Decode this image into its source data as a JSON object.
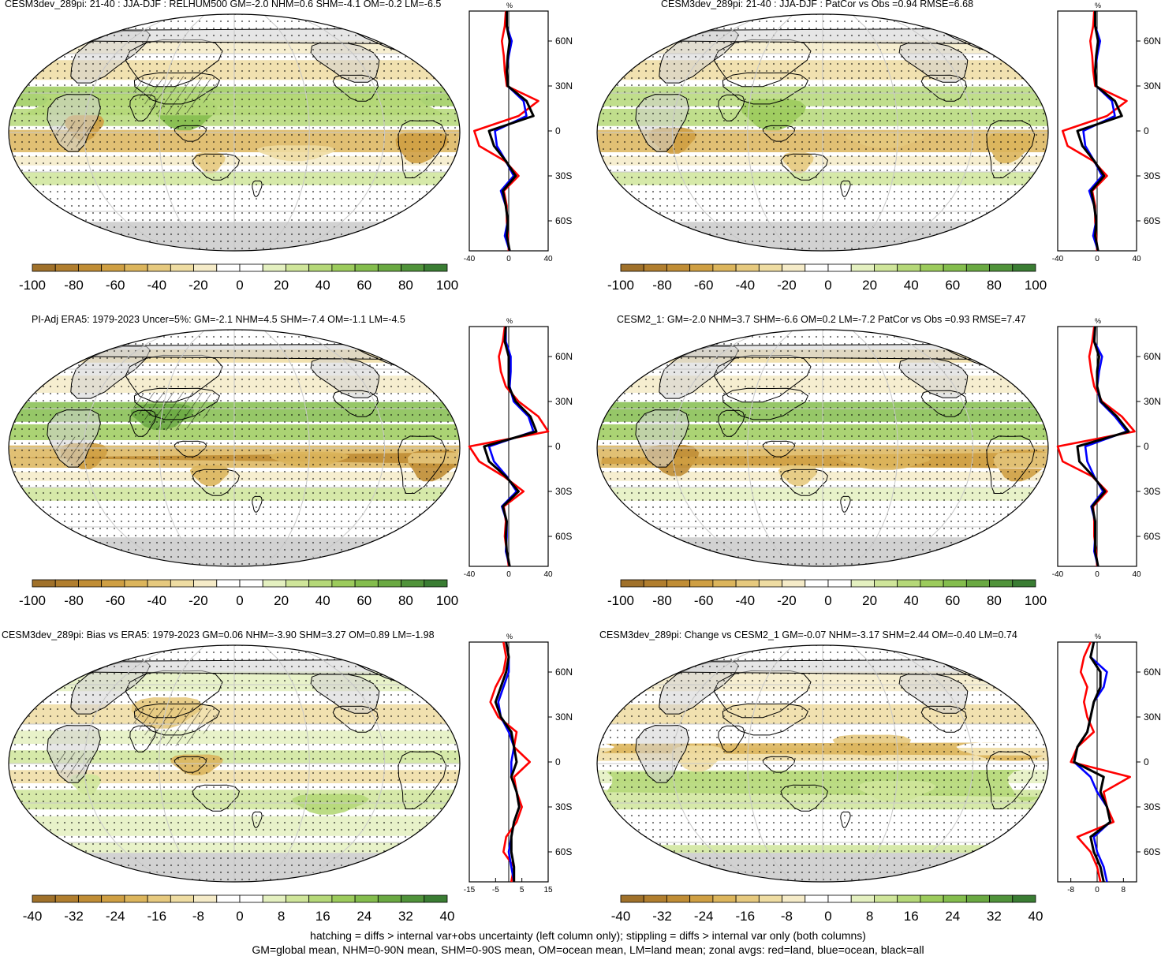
{
  "colors": {
    "scale": [
      "#a0712a",
      "#b17e2e",
      "#c08d35",
      "#cf9f43",
      "#dcb55c",
      "#e6c97e",
      "#eedca2",
      "#f5ebc8",
      "#ffffff",
      "#ffffff",
      "#e4f0c0",
      "#cfe59a",
      "#b5d878",
      "#9ccb5c",
      "#84bd4d",
      "#6aa942",
      "#50933a",
      "#3a7d33"
    ],
    "land": "#d2d2d2",
    "land_curve": "#ff0000",
    "ocean_curve": "#0000ff",
    "all_curve": "#000000"
  },
  "panels": [
    {
      "title": "CESM3dev_289pi: 21-40 : JJA-DJF : RELHUM500 GM=-2.0 NHM=0.6 SHM=-4.1 OM=-0.2 LM=-6.5",
      "hatching": true,
      "colorbar_labels": [
        "-100",
        "-80",
        "-60",
        "-40",
        "-20",
        "0",
        "20",
        "40",
        "60",
        "80",
        "100"
      ],
      "zonal_xticks": [
        "-40",
        "0",
        "40"
      ],
      "zonal_xlim": [
        -40,
        40
      ],
      "zonal_unit": "%",
      "lat_labels": [
        "60N",
        "30N",
        "0",
        "30S",
        "60S"
      ]
    },
    {
      "title": "CESM3dev_289pi: 21-40 : JJA-DJF : PatCor vs Obs =0.94 RMSE=6.68",
      "hatching": false,
      "colorbar_labels": [
        "-100",
        "-80",
        "-60",
        "-40",
        "-20",
        "0",
        "20",
        "40",
        "60",
        "80",
        "100"
      ],
      "zonal_xticks": [
        "-40",
        "0",
        "40"
      ],
      "zonal_xlim": [
        -40,
        40
      ],
      "zonal_unit": "%",
      "lat_labels": [
        "60N",
        "30N",
        "0",
        "30S",
        "60S"
      ]
    },
    {
      "title": "PI-Adj ERA5: 1979-2023 Uncer=5%: GM=-2.1 NHM=4.5 SHM=-7.4 OM=-1.1 LM=-4.5",
      "hatching": true,
      "colorbar_labels": [
        "-100",
        "-80",
        "-60",
        "-40",
        "-20",
        "0",
        "20",
        "40",
        "60",
        "80",
        "100"
      ],
      "zonal_xticks": [
        "-40",
        "0",
        "40"
      ],
      "zonal_xlim": [
        -40,
        40
      ],
      "zonal_unit": "%",
      "lat_labels": [
        "60N",
        "30N",
        "0",
        "30S",
        "60S"
      ]
    },
    {
      "title": "CESM2_1: GM=-2.0 NHM=3.7 SHM=-6.6 OM=0.2 LM=-7.2 PatCor vs Obs =0.93 RMSE=7.47",
      "hatching": false,
      "colorbar_labels": [
        "-100",
        "-80",
        "-60",
        "-40",
        "-20",
        "0",
        "20",
        "40",
        "60",
        "80",
        "100"
      ],
      "zonal_xticks": [
        "-40",
        "0",
        "40"
      ],
      "zonal_xlim": [
        -40,
        40
      ],
      "zonal_unit": "%",
      "lat_labels": [
        "60N",
        "30N",
        "0",
        "30S",
        "60S"
      ]
    },
    {
      "title": "CESM3dev_289pi: Bias vs ERA5: 1979-2023 GM=0.06 NHM=-3.90 SHM=3.27 OM=0.89 LM=-1.98",
      "hatching": true,
      "colorbar_labels": [
        "-40",
        "-32",
        "-24",
        "-16",
        "-8",
        "0",
        "8",
        "16",
        "24",
        "32",
        "40"
      ],
      "zonal_xticks": [
        "-15",
        "-5",
        "5",
        "15"
      ],
      "zonal_xlim": [
        -15,
        15
      ],
      "zonal_unit": "%",
      "lat_labels": [
        "60N",
        "30N",
        "0",
        "30S",
        "60S"
      ]
    },
    {
      "title": "CESM3dev_289pi: Change vs CESM2_1 GM=-0.07 NHM=-3.17 SHM=2.44 OM=-0.40 LM=0.74",
      "hatching": false,
      "colorbar_labels": [
        "-40",
        "-32",
        "-24",
        "-16",
        "-8",
        "0",
        "8",
        "16",
        "24",
        "32",
        "40"
      ],
      "zonal_xticks": [
        "-8",
        "0",
        "8"
      ],
      "zonal_xlim": [
        -12,
        12
      ],
      "zonal_unit": "%",
      "lat_labels": [
        "60N",
        "30N",
        "0",
        "30S",
        "60S"
      ]
    }
  ],
  "chart_data": [
    {
      "type": "line",
      "title": "CESM3dev_289pi: 21-40 : JJA-DJF : RELHUM500 GM=-2.0 NHM=0.6 SHM=-4.1 OM=-0.2 LM=-6.5",
      "xlabel": "%",
      "ylim": [
        -80,
        80
      ],
      "lat": [
        80,
        70,
        60,
        50,
        40,
        30,
        20,
        10,
        0,
        -10,
        -20,
        -30,
        -40,
        -50,
        -60,
        -70,
        -80
      ],
      "series": [
        {
          "name": "land",
          "values": [
            -3,
            -4,
            -7,
            -5,
            -4,
            -2,
            30,
            10,
            -35,
            -30,
            -4,
            10,
            -5,
            -2,
            -2,
            -1,
            0
          ]
        },
        {
          "name": "ocean",
          "values": [
            -2,
            -2,
            3,
            0,
            -2,
            -1,
            15,
            18,
            -14,
            -12,
            -3,
            5,
            -8,
            -3,
            -1,
            -4,
            1
          ]
        },
        {
          "name": "all",
          "values": [
            -2,
            -2,
            1,
            -1,
            -2,
            -1,
            18,
            25,
            -20,
            -15,
            -3,
            7,
            -6,
            -3,
            -1,
            -2,
            1
          ]
        }
      ]
    },
    {
      "type": "line",
      "title": "CESM3dev_289pi: 21-40 : JJA-DJF : PatCor vs Obs =0.94 RMSE=6.68",
      "xlabel": "%",
      "ylim": [
        -80,
        80
      ],
      "lat": [
        80,
        70,
        60,
        50,
        40,
        30,
        20,
        10,
        0,
        -10,
        -20,
        -30,
        -40,
        -50,
        -60,
        -70,
        -80
      ],
      "series": [
        {
          "name": "land",
          "values": [
            -3,
            -4,
            -7,
            -5,
            -4,
            -2,
            30,
            10,
            -35,
            -30,
            -4,
            10,
            -5,
            -2,
            -2,
            -1,
            0
          ]
        },
        {
          "name": "ocean",
          "values": [
            -2,
            -2,
            3,
            0,
            -2,
            -1,
            15,
            18,
            -14,
            -12,
            -3,
            5,
            -8,
            -3,
            -1,
            -4,
            1
          ]
        },
        {
          "name": "all",
          "values": [
            -2,
            -2,
            1,
            -1,
            -2,
            -1,
            18,
            25,
            -20,
            -15,
            -3,
            7,
            -6,
            -3,
            -1,
            -2,
            1
          ]
        }
      ]
    },
    {
      "type": "line",
      "title": "PI-Adj ERA5: 1979-2023 Uncer=5%: GM=-2.1 NHM=4.5 SHM=-7.4 OM=-1.1 LM=-4.5",
      "xlabel": "%",
      "ylim": [
        -80,
        80
      ],
      "lat": [
        80,
        70,
        60,
        50,
        40,
        30,
        20,
        10,
        0,
        -10,
        -20,
        -30,
        -40,
        -50,
        -60,
        -70,
        -80
      ],
      "series": [
        {
          "name": "land",
          "values": [
            -4,
            -6,
            -10,
            -8,
            -3,
            10,
            30,
            40,
            -40,
            -30,
            -5,
            15,
            -5,
            -3,
            -4,
            -2,
            0
          ]
        },
        {
          "name": "ocean",
          "values": [
            -3,
            -3,
            2,
            2,
            1,
            5,
            20,
            25,
            -20,
            -15,
            -2,
            8,
            -7,
            -2,
            -2,
            -3,
            1
          ]
        },
        {
          "name": "all",
          "values": [
            -3,
            -4,
            0,
            0,
            0,
            7,
            22,
            28,
            -25,
            -20,
            -3,
            10,
            -6,
            -2,
            -3,
            -2,
            1
          ]
        }
      ]
    },
    {
      "type": "line",
      "title": "CESM2_1: GM=-2.0 NHM=3.7 SHM=-6.6 OM=0.2 LM=-7.2 PatCor vs Obs =0.93 RMSE=7.47",
      "xlabel": "%",
      "ylim": [
        -80,
        80
      ],
      "lat": [
        80,
        70,
        60,
        50,
        40,
        30,
        20,
        10,
        0,
        -10,
        -20,
        -30,
        -40,
        -50,
        -60,
        -70,
        -80
      ],
      "series": [
        {
          "name": "land",
          "values": [
            -3,
            -5,
            -8,
            -6,
            -3,
            5,
            25,
            38,
            -40,
            -35,
            -5,
            10,
            -4,
            -3,
            -3,
            -1,
            0
          ]
        },
        {
          "name": "ocean",
          "values": [
            -2,
            -3,
            5,
            2,
            0,
            3,
            18,
            30,
            -12,
            -10,
            -3,
            6,
            -6,
            -2,
            -2,
            -3,
            1
          ]
        },
        {
          "name": "all",
          "values": [
            -2,
            -3,
            2,
            0,
            0,
            4,
            20,
            32,
            -20,
            -18,
            -4,
            8,
            -5,
            -2,
            -2,
            -2,
            1
          ]
        }
      ]
    },
    {
      "type": "line",
      "title": "CESM3dev_289pi: Bias vs ERA5: 1979-2023 GM=0.06 NHM=-3.90 SHM=3.27 OM=0.89 LM=-1.98",
      "xlabel": "%",
      "ylim": [
        -80,
        80
      ],
      "lat": [
        80,
        70,
        60,
        50,
        40,
        30,
        20,
        10,
        0,
        -10,
        -20,
        -30,
        -40,
        -50,
        -60,
        -70,
        -80
      ],
      "series": [
        {
          "name": "land",
          "values": [
            -2,
            -1,
            -2,
            -5,
            -7,
            -4,
            3,
            2,
            8,
            2,
            3,
            5,
            3,
            -1,
            -2,
            2,
            1
          ]
        },
        {
          "name": "ocean",
          "values": [
            -1,
            0,
            0,
            -2,
            -4,
            -3,
            0,
            2,
            1,
            1,
            3,
            4,
            2,
            1,
            0,
            1,
            2
          ]
        },
        {
          "name": "all",
          "values": [
            -1,
            0,
            -1,
            -3,
            -5,
            -3,
            1,
            2,
            3,
            1,
            3,
            4,
            2,
            1,
            1,
            2,
            2
          ]
        }
      ]
    },
    {
      "type": "line",
      "title": "CESM3dev_289pi: Change vs CESM2_1 GM=-0.07 NHM=-3.17 SHM=2.44 OM=-0.40 LM=0.74",
      "xlabel": "%",
      "ylim": [
        -80,
        80
      ],
      "lat": [
        80,
        70,
        60,
        50,
        40,
        30,
        20,
        10,
        0,
        -10,
        -20,
        -30,
        -40,
        -50,
        -60,
        -70,
        -80
      ],
      "series": [
        {
          "name": "land",
          "values": [
            -2,
            -4,
            -5,
            -3,
            -4,
            -3,
            -1,
            -6,
            -8,
            10,
            2,
            3,
            5,
            -6,
            -2,
            0,
            1
          ]
        },
        {
          "name": "ocean",
          "values": [
            -1,
            -2,
            3,
            2,
            -1,
            -2,
            -3,
            -6,
            -7,
            -2,
            0,
            3,
            4,
            -1,
            0,
            2,
            3
          ]
        },
        {
          "name": "all",
          "values": [
            -1,
            -2,
            1,
            1,
            -1,
            -2,
            -3,
            -6,
            -7,
            2,
            1,
            3,
            4,
            -2,
            -1,
            1,
            2
          ]
        }
      ]
    }
  ],
  "footer": {
    "line1": "hatching = diffs > internal var+obs uncertainty (left column only); stippling = diffs > internal var only (both columns)",
    "line2": "GM=global mean, NHM=0-90N mean, SHM=0-90S mean, OM=ocean mean, LM=land mean; zonal avgs: red=land, blue=ocean, black=all"
  }
}
